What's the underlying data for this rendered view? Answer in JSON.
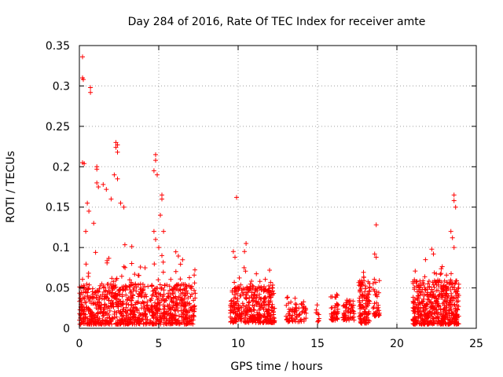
{
  "chart_data": {
    "type": "scatter",
    "title": "Day 284 of 2016, Rate Of TEC Index for receiver amte",
    "xlabel": "GPS time / hours",
    "ylabel": "ROTI / TECUs",
    "xlim": [
      0,
      25
    ],
    "ylim": [
      0,
      0.35
    ],
    "xticks": [
      0,
      5,
      10,
      15,
      20,
      25
    ],
    "xtick_labels": [
      "0",
      "5",
      "10",
      "15",
      "20",
      "25"
    ],
    "yticks": [
      0,
      0.05,
      0.1,
      0.15,
      0.2,
      0.25,
      0.3,
      0.35
    ],
    "ytick_labels": [
      "0",
      "0.05",
      "0.1",
      "0.15",
      "0.2",
      "0.25",
      "0.3",
      "0.35"
    ],
    "grid": true,
    "marker": "+",
    "color": "#ff0000",
    "series": [
      {
        "name": "ROTI",
        "outliers": [
          [
            0.2,
            0.336
          ],
          [
            0.2,
            0.31
          ],
          [
            0.25,
            0.308
          ],
          [
            0.7,
            0.298
          ],
          [
            0.7,
            0.292
          ],
          [
            0.2,
            0.205
          ],
          [
            0.3,
            0.204
          ],
          [
            1.1,
            0.2
          ],
          [
            1.1,
            0.197
          ],
          [
            2.3,
            0.23
          ],
          [
            2.4,
            0.227
          ],
          [
            2.3,
            0.224
          ],
          [
            2.4,
            0.218
          ],
          [
            4.8,
            0.215
          ],
          [
            4.8,
            0.208
          ],
          [
            4.7,
            0.195
          ],
          [
            4.9,
            0.19
          ],
          [
            2.2,
            0.19
          ],
          [
            2.4,
            0.185
          ],
          [
            1.1,
            0.18
          ],
          [
            1.2,
            0.175
          ],
          [
            1.5,
            0.178
          ],
          [
            1.7,
            0.172
          ],
          [
            2.0,
            0.16
          ],
          [
            2.6,
            0.155
          ],
          [
            2.8,
            0.15
          ],
          [
            5.2,
            0.165
          ],
          [
            5.2,
            0.16
          ],
          [
            5.1,
            0.14
          ],
          [
            5.3,
            0.12
          ],
          [
            9.9,
            0.162
          ],
          [
            18.7,
            0.128
          ],
          [
            23.6,
            0.165
          ],
          [
            23.6,
            0.158
          ],
          [
            23.7,
            0.15
          ],
          [
            0.5,
            0.155
          ],
          [
            0.6,
            0.145
          ],
          [
            0.9,
            0.13
          ],
          [
            0.4,
            0.12
          ],
          [
            4.7,
            0.12
          ],
          [
            4.8,
            0.11
          ],
          [
            5.0,
            0.1
          ],
          [
            5.2,
            0.09
          ],
          [
            10.5,
            0.105
          ],
          [
            10.4,
            0.095
          ],
          [
            9.7,
            0.095
          ],
          [
            9.8,
            0.088
          ],
          [
            18.6,
            0.092
          ],
          [
            18.7,
            0.088
          ],
          [
            23.4,
            0.12
          ],
          [
            23.5,
            0.112
          ],
          [
            22.2,
            0.098
          ],
          [
            22.3,
            0.092
          ],
          [
            21.8,
            0.085
          ],
          [
            23.6,
            0.1
          ]
        ],
        "clusters": [
          {
            "x_range": [
              0.0,
              7.3
            ],
            "count": 950,
            "y_base": 0.005,
            "y_spread": 0.05,
            "y_tail": 0.06
          },
          {
            "x_range": [
              9.5,
              12.3
            ],
            "count": 380,
            "y_base": 0.007,
            "y_spread": 0.045,
            "y_tail": 0.03
          },
          {
            "x_range": [
              13.0,
              14.3
            ],
            "count": 70,
            "y_base": 0.008,
            "y_spread": 0.025,
            "y_tail": 0.01
          },
          {
            "x_range": [
              14.9,
              15.1
            ],
            "count": 10,
            "y_base": 0.008,
            "y_spread": 0.025,
            "y_tail": 0.0
          },
          {
            "x_range": [
              15.8,
              16.3
            ],
            "count": 45,
            "y_base": 0.01,
            "y_spread": 0.035,
            "y_tail": 0.0
          },
          {
            "x_range": [
              16.6,
              17.3
            ],
            "count": 55,
            "y_base": 0.01,
            "y_spread": 0.025,
            "y_tail": 0.0
          },
          {
            "x_range": [
              17.6,
              18.3
            ],
            "count": 110,
            "y_base": 0.006,
            "y_spread": 0.055,
            "y_tail": 0.015
          },
          {
            "x_range": [
              18.5,
              18.9
            ],
            "count": 35,
            "y_base": 0.015,
            "y_spread": 0.05,
            "y_tail": 0.0
          },
          {
            "x_range": [
              21.0,
              23.9
            ],
            "count": 500,
            "y_base": 0.005,
            "y_spread": 0.055,
            "y_tail": 0.025
          }
        ]
      }
    ]
  }
}
